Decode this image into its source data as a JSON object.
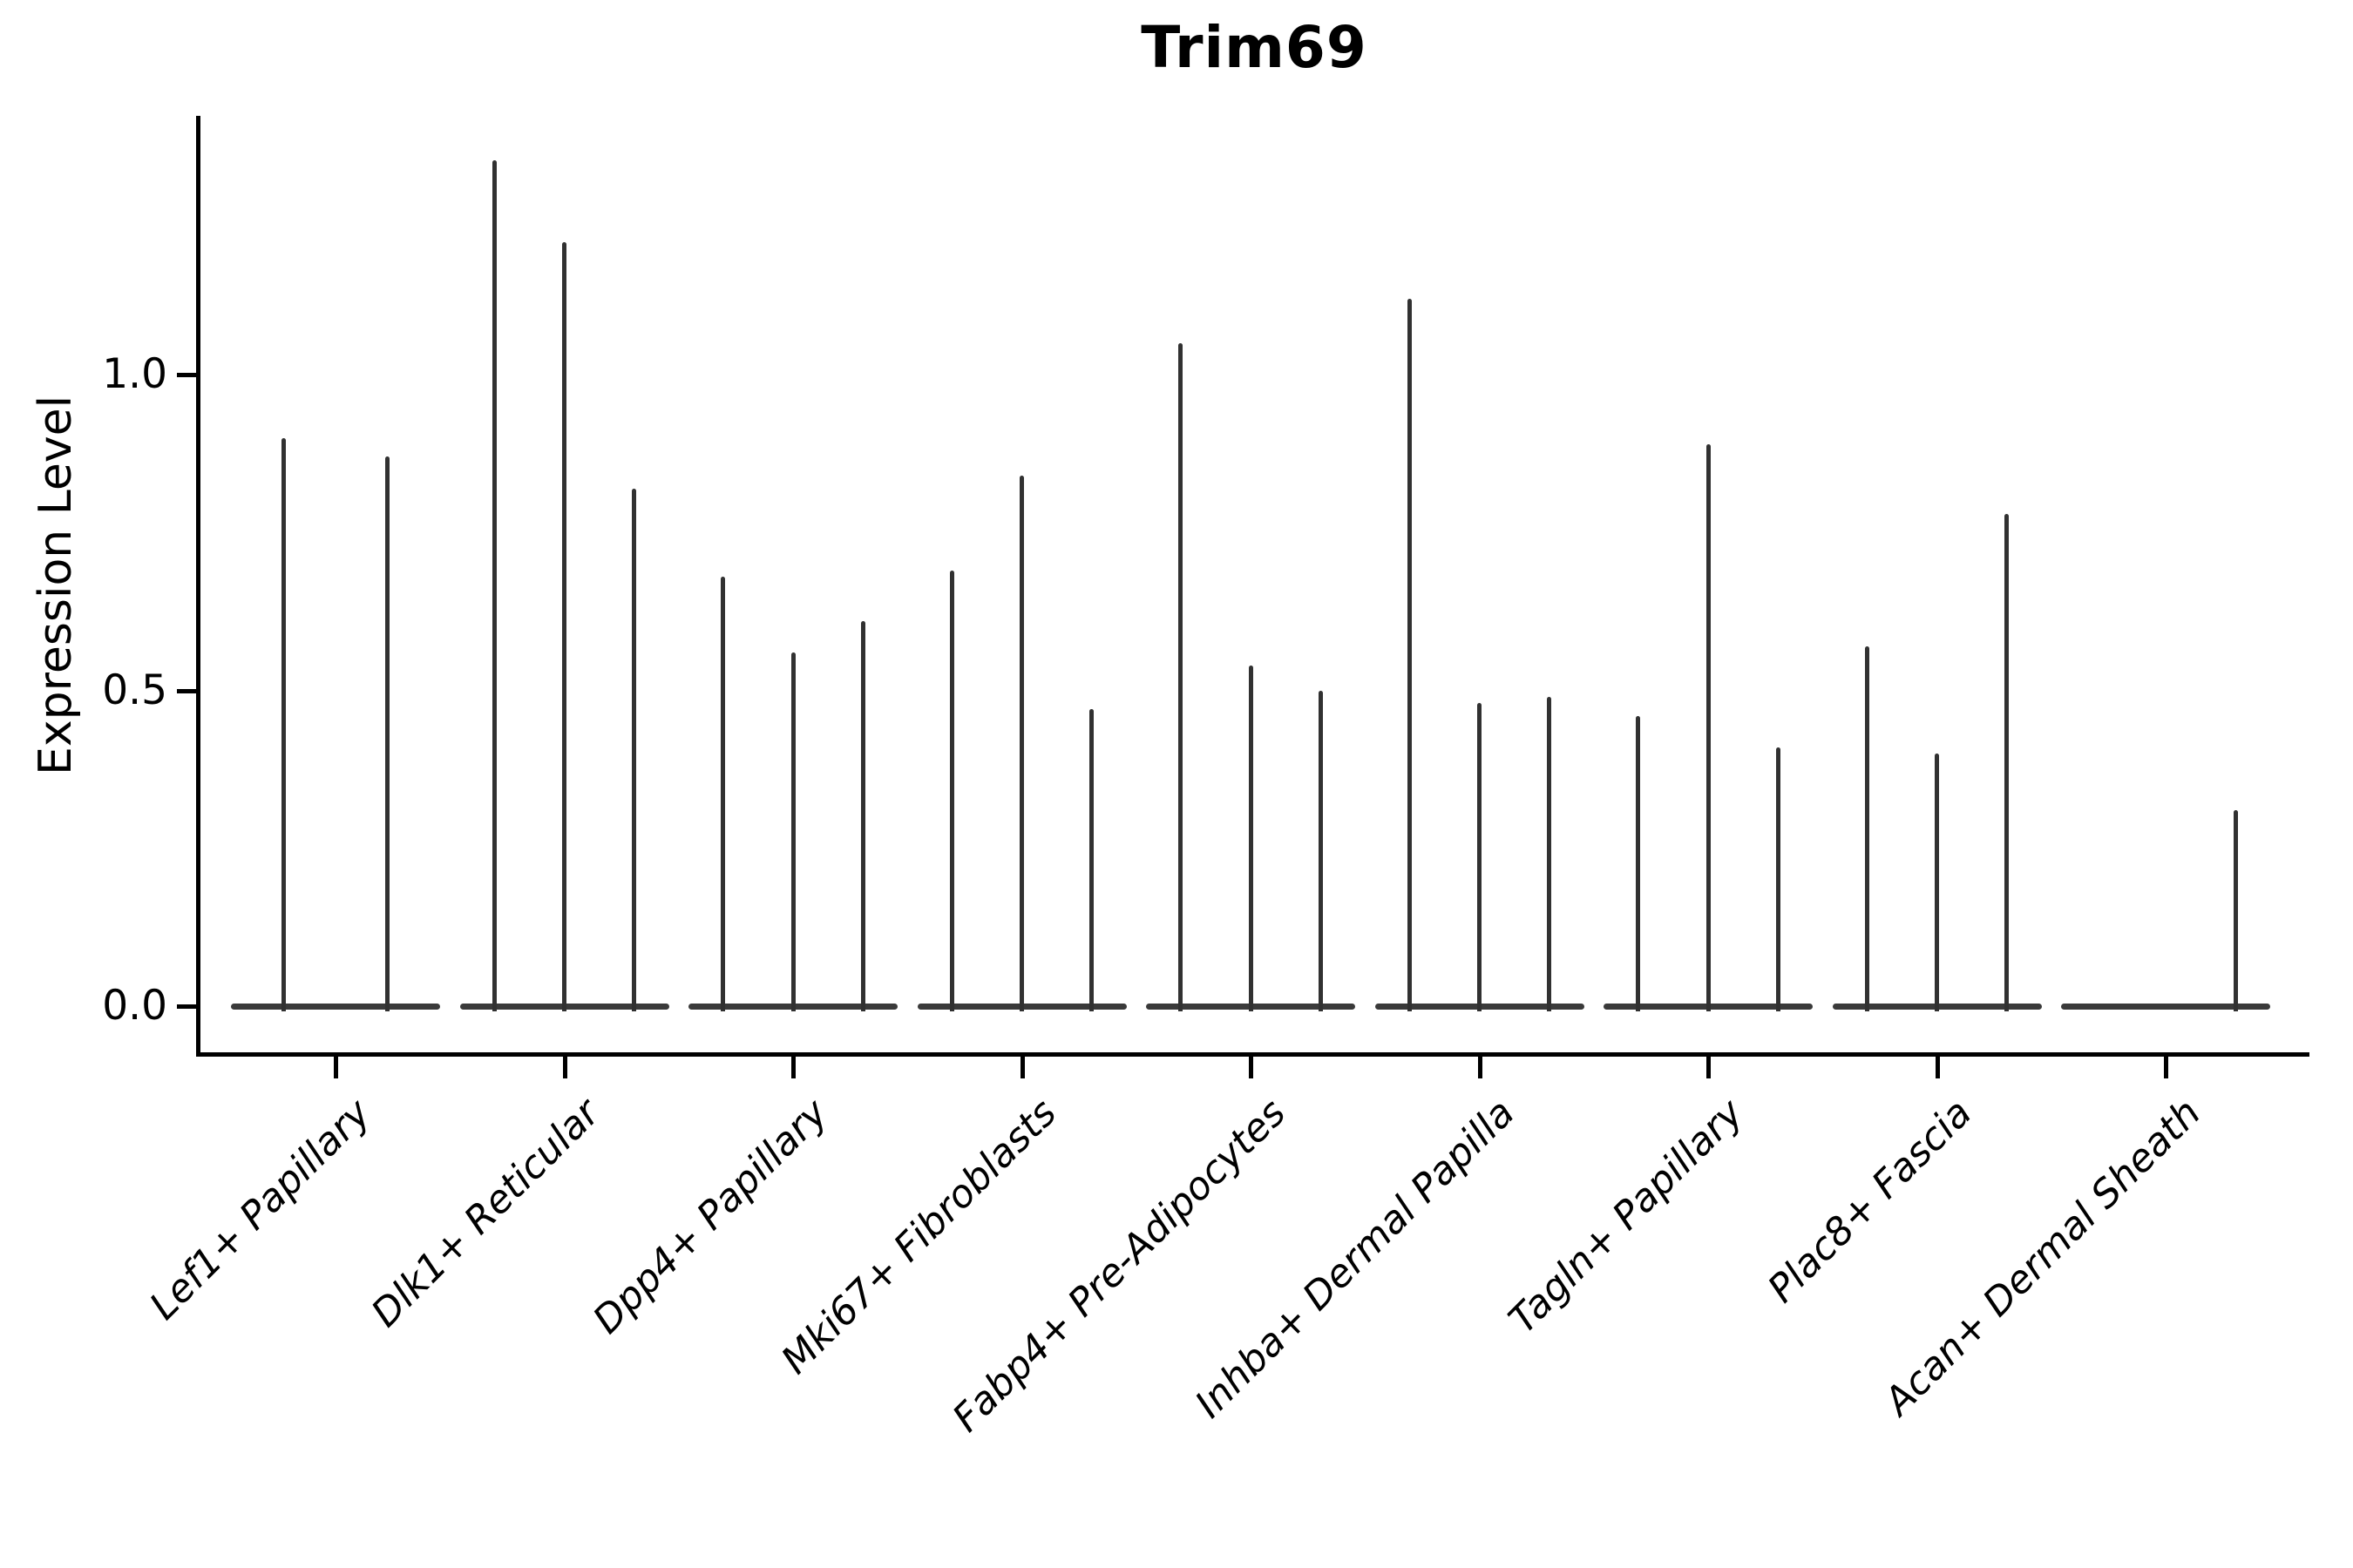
{
  "title": "Trim69",
  "axes": {
    "ylabel": "Expression Level",
    "ytick_labels": [
      "0.0",
      "0.5",
      "1.0"
    ]
  },
  "colors": {
    "violin_line": "#313131",
    "baseline_line": "#3a3a3a",
    "axis": "#000000",
    "text": "#000000",
    "background": "#ffffff"
  },
  "chart_data": {
    "type": "violin",
    "title": "Trim69",
    "ylabel": "Expression Level",
    "xlabel": "",
    "ylim": [
      -0.08,
      1.41
    ],
    "ytick_values": [
      0.0,
      0.5,
      1.0
    ],
    "ytick_labels": [
      "0.0",
      "0.5",
      "1.0"
    ],
    "grid": false,
    "legend_position": "none",
    "style_note": "single-gene violin plot; each violin collapses to a flat line at 0 expression with a hair-thin spike rising to the maximum expression value; violins are dodged within each category (2 sub-violins for Lef1+ Papillary, 3 elsewhere; first two of Acan+ Dermal Sheath are flat at 0)",
    "categories": [
      "Lef1+ Papillary",
      "Dlk1+ Reticular",
      "Dpp4+ Papillary",
      "Mki67+ Fibroblasts",
      "Fabp4+ Pre-Adipocytes",
      "Inhba+ Dermal Papilla",
      "Tagln+ Papillary",
      "Plac8+ Fascia",
      "Acan+ Dermal Sheath"
    ],
    "groups": [
      {
        "category": "Lef1+ Papillary",
        "violins": [
          {
            "dodge": -0.225,
            "max": 0.9
          },
          {
            "dodge": 0.225,
            "max": 0.87
          }
        ]
      },
      {
        "category": "Dlk1+ Reticular",
        "violins": [
          {
            "dodge": -0.305,
            "max": 1.34
          },
          {
            "dodge": 0,
            "max": 1.21
          },
          {
            "dodge": 0.305,
            "max": 0.82
          }
        ]
      },
      {
        "category": "Dpp4+ Papillary",
        "violins": [
          {
            "dodge": -0.305,
            "max": 0.68
          },
          {
            "dodge": 0,
            "max": 0.56
          },
          {
            "dodge": 0.305,
            "max": 0.61
          }
        ]
      },
      {
        "category": "Mki67+ Fibroblasts",
        "violins": [
          {
            "dodge": -0.305,
            "max": 0.69
          },
          {
            "dodge": 0,
            "max": 0.84
          },
          {
            "dodge": 0.305,
            "max": 0.47
          }
        ]
      },
      {
        "category": "Fabp4+ Pre-Adipocytes",
        "violins": [
          {
            "dodge": -0.305,
            "max": 1.05
          },
          {
            "dodge": 0,
            "max": 0.54
          },
          {
            "dodge": 0.305,
            "max": 0.5
          }
        ]
      },
      {
        "category": "Inhba+ Dermal Papilla",
        "violins": [
          {
            "dodge": -0.305,
            "max": 1.12
          },
          {
            "dodge": 0,
            "max": 0.48
          },
          {
            "dodge": 0.305,
            "max": 0.49
          }
        ]
      },
      {
        "category": "Tagln+ Papillary",
        "violins": [
          {
            "dodge": -0.305,
            "max": 0.46
          },
          {
            "dodge": 0,
            "max": 0.89
          },
          {
            "dodge": 0.305,
            "max": 0.41
          }
        ]
      },
      {
        "category": "Plac8+ Fascia",
        "violins": [
          {
            "dodge": -0.305,
            "max": 0.57
          },
          {
            "dodge": 0,
            "max": 0.4
          },
          {
            "dodge": 0.305,
            "max": 0.78
          }
        ]
      },
      {
        "category": "Acan+ Dermal Sheath",
        "violins": [
          {
            "dodge": -0.305,
            "max": 0.0
          },
          {
            "dodge": 0,
            "max": 0.0
          },
          {
            "dodge": 0.305,
            "max": 0.31
          }
        ]
      }
    ]
  }
}
